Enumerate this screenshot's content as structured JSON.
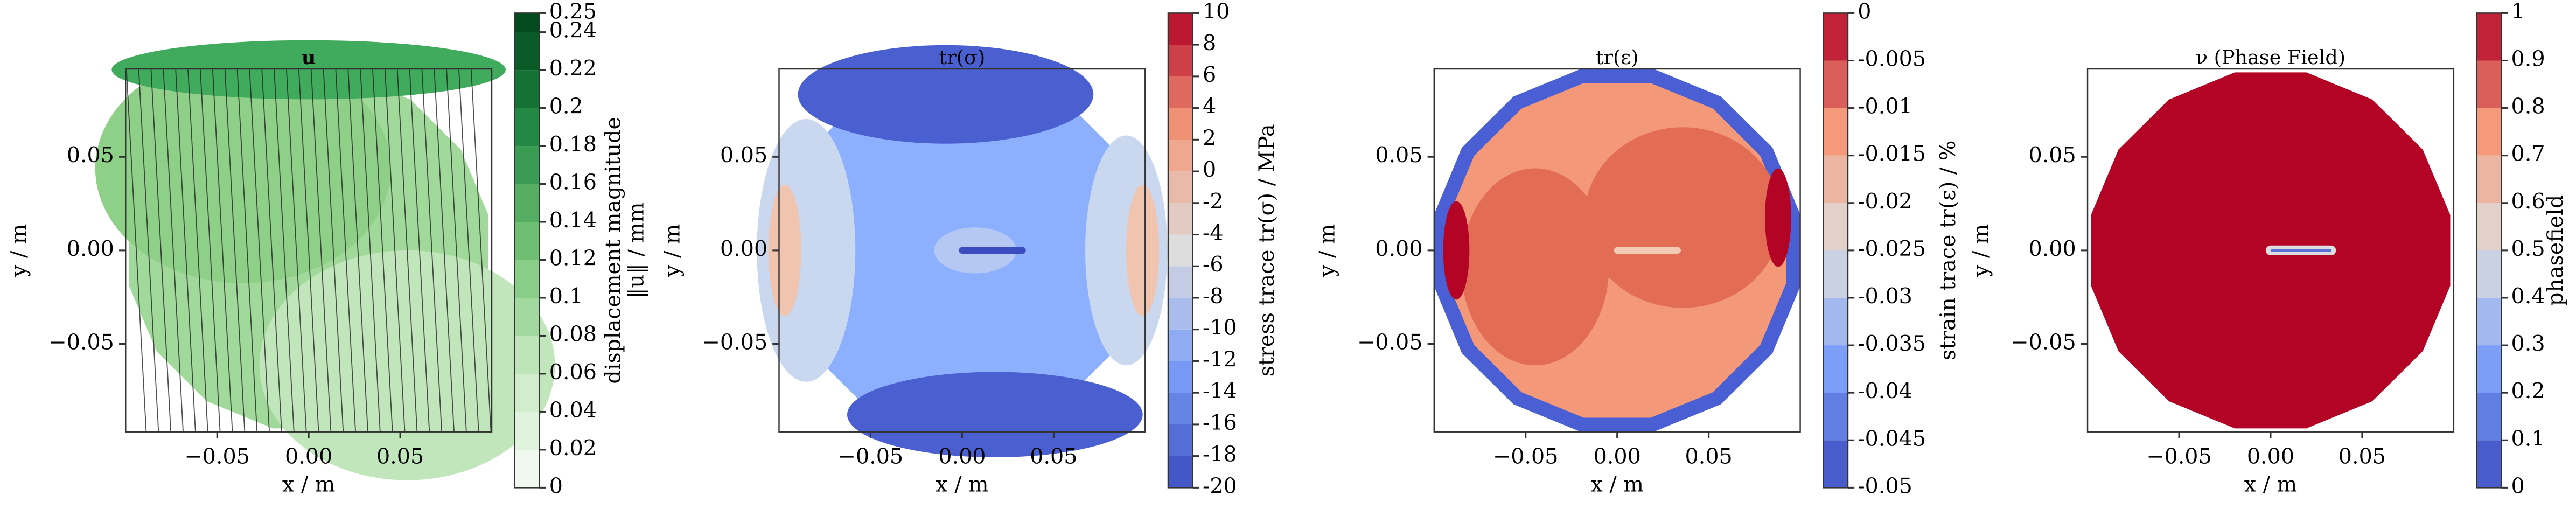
{
  "chart_data": [
    {
      "type": "contour",
      "title": "u",
      "xlabel": "x / m",
      "ylabel": "y / m",
      "xlim": [
        -0.1,
        0.1
      ],
      "ylim": [
        -0.097,
        0.097
      ],
      "xticks": [
        {
          "value": -0.05,
          "label": "−0.05"
        },
        {
          "value": 0,
          "label": "0.00"
        },
        {
          "value": 0.05,
          "label": "0.05"
        }
      ],
      "yticks": [
        {
          "value": -0.05,
          "label": "−0.05"
        },
        {
          "value": 0,
          "label": "0.00"
        },
        {
          "value": 0.05,
          "label": "0.05"
        }
      ],
      "colorbar": {
        "label": [
          "displacement magnitude",
          "‖u‖ / mm"
        ],
        "colormap": "Greens",
        "ticks": [
          0,
          0.02,
          0.04,
          0.06,
          0.08,
          0.1,
          0.12,
          0.14,
          0.16,
          0.18,
          0.2,
          0.22,
          0.24,
          0.25
        ]
      }
    },
    {
      "type": "contour",
      "title": "tr(σ)",
      "xlabel": "x / m",
      "ylabel": "y / m",
      "xlim": [
        -0.1,
        0.1
      ],
      "ylim": [
        -0.097,
        0.097
      ],
      "xticks": [
        {
          "value": -0.05,
          "label": "−0.05"
        },
        {
          "value": 0,
          "label": "0.00"
        },
        {
          "value": 0.05,
          "label": "0.05"
        }
      ],
      "yticks": [
        {
          "value": -0.05,
          "label": "−0.05"
        },
        {
          "value": 0,
          "label": "0.00"
        },
        {
          "value": 0.05,
          "label": "0.05"
        }
      ],
      "colorbar": {
        "label": [
          "stress trace tr(σ) / MPa"
        ],
        "colormap": "coolwarm",
        "ticks": [
          -20,
          -18,
          -16,
          -14,
          -12,
          -10,
          -8,
          -6,
          -4,
          -2,
          0,
          2,
          4,
          6,
          8,
          10
        ]
      }
    },
    {
      "type": "contour",
      "title": "tr(ε)",
      "xlabel": "x / m",
      "ylabel": "y / m",
      "xlim": [
        -0.1,
        0.1
      ],
      "ylim": [
        -0.097,
        0.097
      ],
      "xticks": [
        {
          "value": -0.05,
          "label": "−0.05"
        },
        {
          "value": 0,
          "label": "0.00"
        },
        {
          "value": 0.05,
          "label": "0.05"
        }
      ],
      "yticks": [
        {
          "value": -0.05,
          "label": "−0.05"
        },
        {
          "value": 0,
          "label": "0.00"
        },
        {
          "value": 0.05,
          "label": "0.05"
        }
      ],
      "colorbar": {
        "label": [
          "strain trace tr(ε) / %"
        ],
        "colormap": "coolwarm",
        "ticks": [
          -0.05,
          -0.045,
          -0.04,
          -0.035,
          -0.03,
          -0.025,
          -0.02,
          -0.015,
          -0.01,
          -0.005,
          0
        ]
      }
    },
    {
      "type": "contour",
      "title": "ν (Phase Field)",
      "xlabel": "x / m",
      "ylabel": "y / m",
      "xlim": [
        -0.1,
        0.1
      ],
      "ylim": [
        -0.097,
        0.097
      ],
      "xticks": [
        {
          "value": -0.05,
          "label": "−0.05"
        },
        {
          "value": 0,
          "label": "0.00"
        },
        {
          "value": 0.05,
          "label": "0.05"
        }
      ],
      "yticks": [
        {
          "value": -0.05,
          "label": "−0.05"
        },
        {
          "value": 0,
          "label": "0.00"
        },
        {
          "value": 0.05,
          "label": "0.05"
        }
      ],
      "colorbar": {
        "label": [
          "phasefield"
        ],
        "colormap": "coolwarm",
        "ticks": [
          0,
          0.1,
          0.2,
          0.3,
          0.4,
          0.5,
          0.6,
          0.7,
          0.8,
          0.9,
          1
        ]
      }
    }
  ]
}
